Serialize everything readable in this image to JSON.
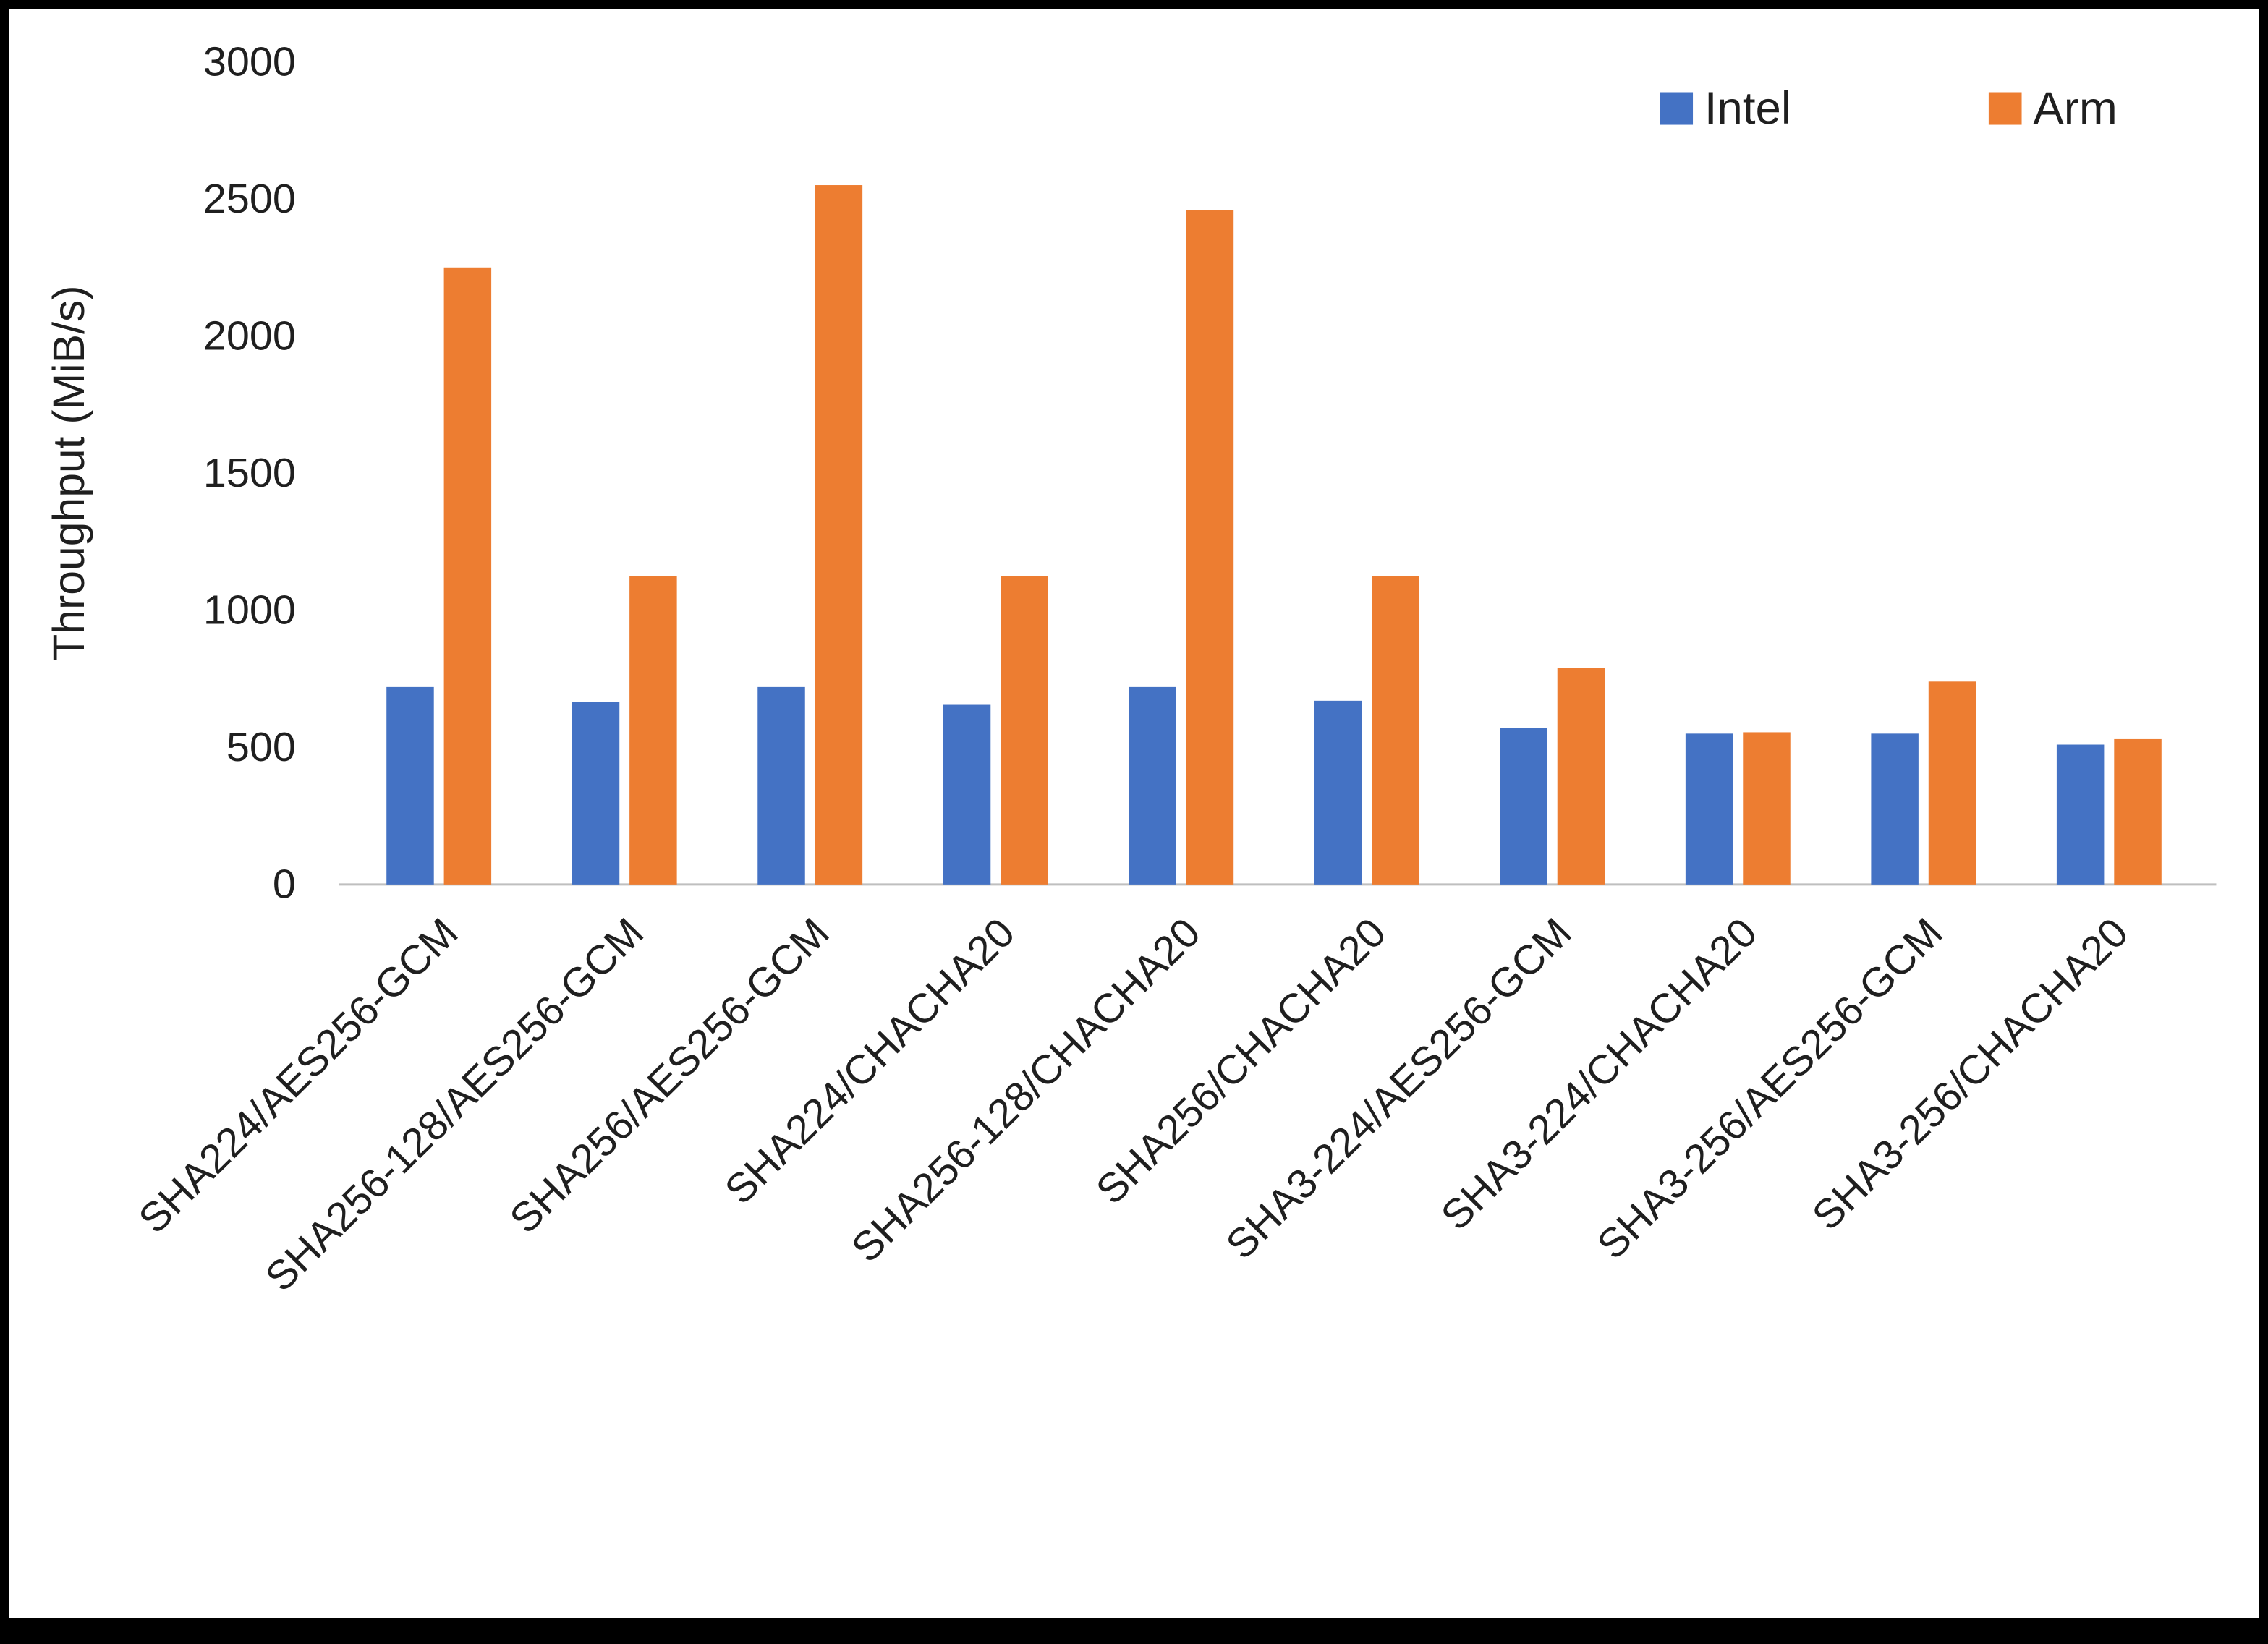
{
  "figure": {
    "background": "#ffffff",
    "border_color": "#000000"
  },
  "chart_data": {
    "type": "bar",
    "title": "",
    "xlabel": "",
    "ylabel": "Throughput (MiB/s)",
    "ylim": [
      0,
      3000
    ],
    "yticks": [
      0,
      500,
      1000,
      1500,
      2000,
      2500,
      3000
    ],
    "grid": false,
    "legend_position": "top-right",
    "axis_color": "#BFBFBF",
    "text_color": "#1f1f1f",
    "categories": [
      "SHA224/AES256-GCM",
      "SHA256-128/AES256-GCM",
      "SHA256/AES256-GCM",
      "SHA224/CHACHA20",
      "SHA256-128/CHACHA20",
      "SHA256/CHACHA20",
      "SHA3-224/AES256-GCM",
      "SHA3-224/CHACHA20",
      "SHA3-256/AES256-GCM",
      "SHA3-256/CHACHA20"
    ],
    "series": [
      {
        "name": "Intel",
        "color": "#4472C4",
        "values": [
          720,
          665,
          720,
          655,
          720,
          670,
          570,
          550,
          550,
          510
        ]
      },
      {
        "name": "Arm",
        "color": "#ED7D31",
        "values": [
          2250,
          1125,
          2550,
          1125,
          2460,
          1125,
          790,
          555,
          740,
          530
        ]
      }
    ]
  }
}
